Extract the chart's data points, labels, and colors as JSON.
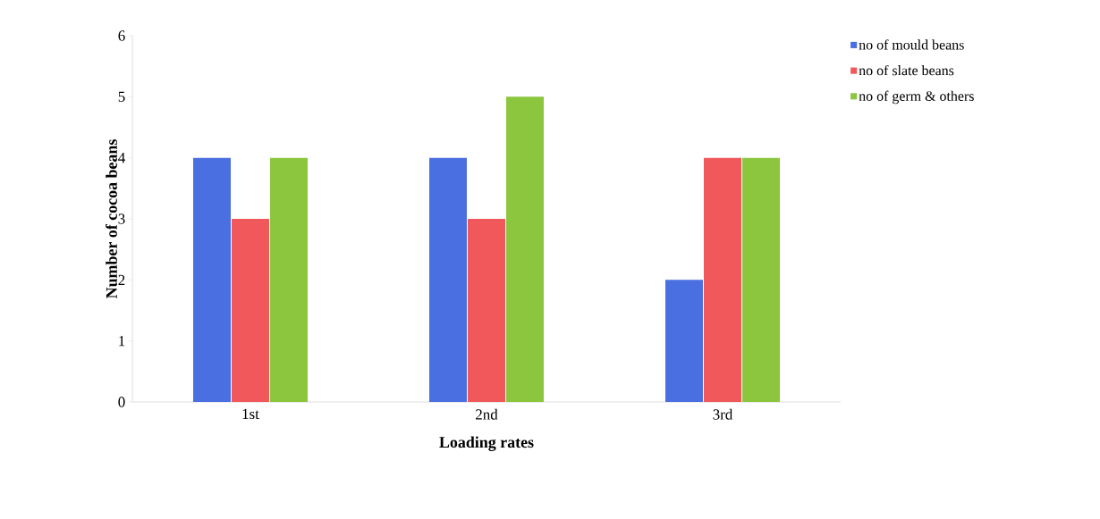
{
  "chart_data": {
    "type": "bar",
    "xlabel": "Loading rates",
    "ylabel": "Number of cocoa beans",
    "categories": [
      "1st",
      "2nd",
      "3rd"
    ],
    "series": [
      {
        "name": "no of mould beans",
        "color": "#4a6fe0",
        "values": [
          4,
          4,
          2
        ]
      },
      {
        "name": "no of slate beans",
        "color": "#f0585c",
        "values": [
          3,
          3,
          4
        ]
      },
      {
        "name": "no of germ & others",
        "color": "#8cc63f",
        "values": [
          4,
          5,
          4
        ]
      }
    ],
    "ylim": [
      0,
      6
    ],
    "yticks": [
      0,
      1,
      2,
      3,
      4,
      5,
      6
    ],
    "grid": false,
    "legend": "top right"
  }
}
